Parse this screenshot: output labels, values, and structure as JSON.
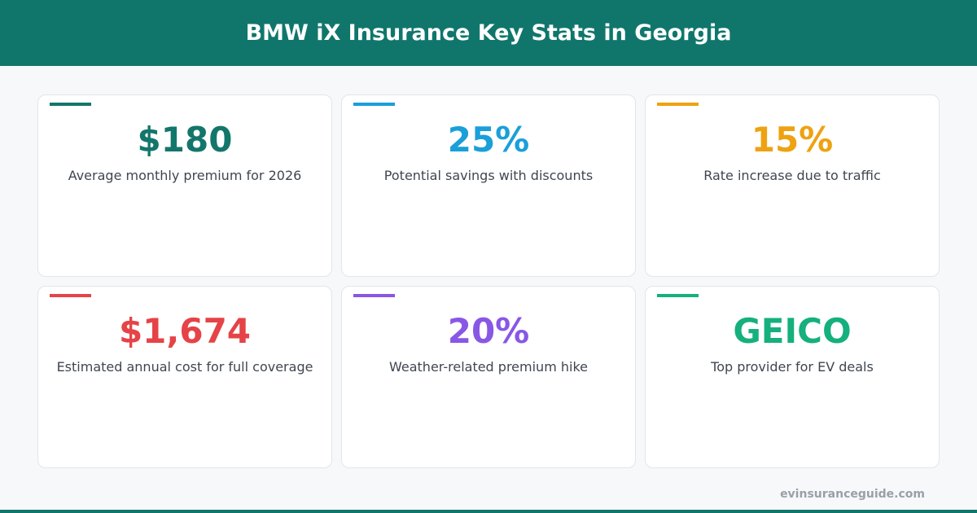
{
  "header": {
    "title": "BMW iX Insurance Key Stats in Georgia"
  },
  "cards": [
    {
      "value": "$180",
      "label": "Average monthly premium for 2026",
      "color": "#13766b"
    },
    {
      "value": "25%",
      "label": "Potential savings with discounts",
      "color": "#1a9fd9"
    },
    {
      "value": "15%",
      "label": "Rate increase due to traffic",
      "color": "#eea211"
    },
    {
      "value": "$1,674",
      "label": "Estimated annual cost for full coverage",
      "color": "#e54347"
    },
    {
      "value": "20%",
      "label": "Weather-related premium hike",
      "color": "#8957e5"
    },
    {
      "value": "GEICO",
      "label": "Top provider for EV deals",
      "color": "#15b07d"
    }
  ],
  "footer": {
    "source": "evinsuranceguide.com"
  }
}
